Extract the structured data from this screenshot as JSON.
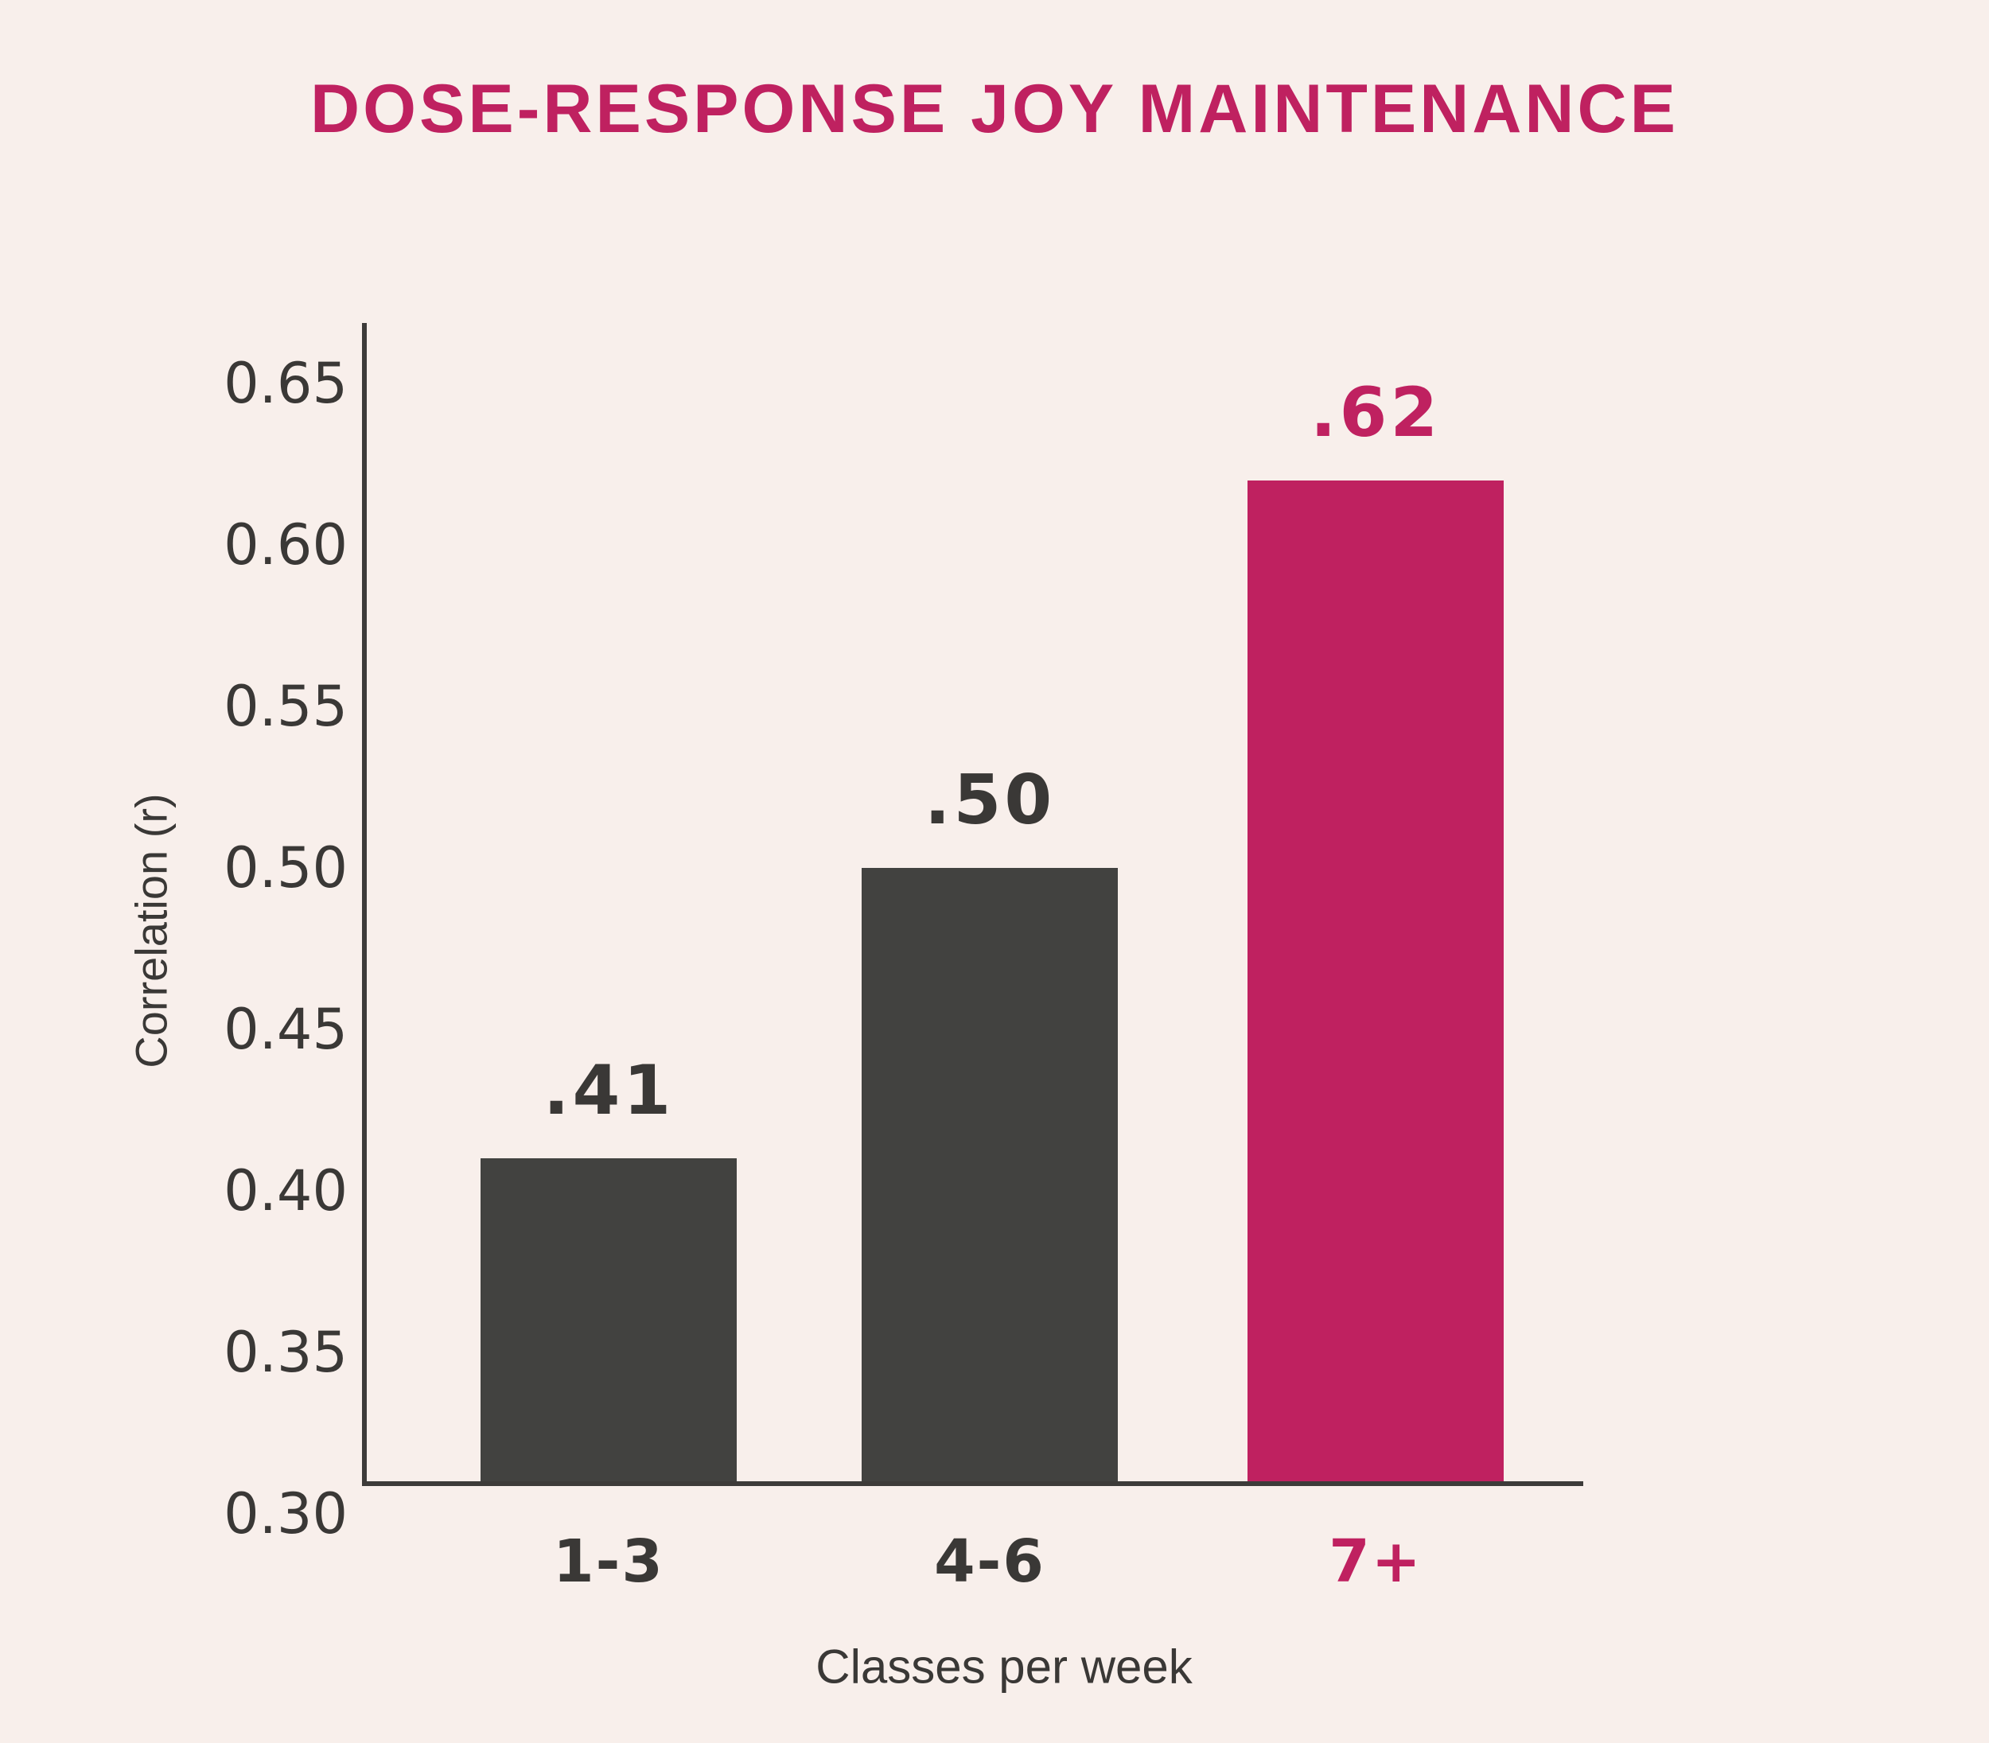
{
  "chart_data": {
    "type": "bar",
    "title": "DOSE-RESPONSE JOY MAINTENANCE",
    "categories": [
      "1-3",
      "4-6",
      "7+"
    ],
    "values": [
      0.41,
      0.5,
      0.62
    ],
    "bar_labels": [
      ".41",
      ".50",
      ".62"
    ],
    "xlabel": "Classes per week",
    "ylabel": "Correlation (r)",
    "ylim": [
      0.3,
      0.65
    ],
    "ytick_step": 0.05,
    "ytick_labels": [
      "0.30",
      "0.35",
      "0.40",
      "0.45",
      "0.50",
      "0.55",
      "0.60",
      "0.65"
    ],
    "grid": false,
    "legend": false,
    "highlight_index": 2,
    "colors": {
      "bar_default": "#424240",
      "bar_highlight": "#bf2160",
      "label_default": "#3a3836",
      "label_highlight": "#bf2160",
      "axis": "#3d3b39",
      "background": "#f8efeb",
      "title": "#bf2160"
    }
  }
}
